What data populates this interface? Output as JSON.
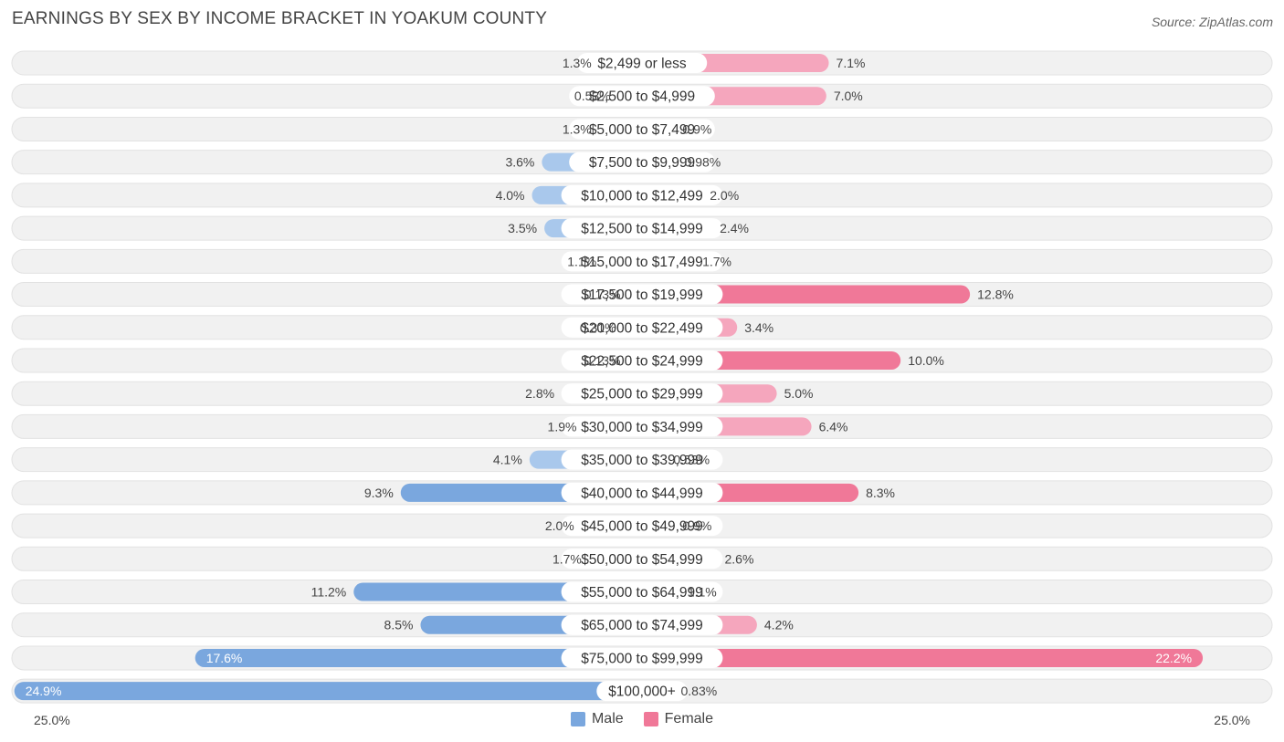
{
  "title": "EARNINGS BY SEX BY INCOME BRACKET IN YOAKUM COUNTY",
  "source": "Source: ZipAtlas.com",
  "colors": {
    "male": "#7aa7de",
    "male_light": "#a9c8ec",
    "female": "#f07898",
    "female_light": "#f5a6bd",
    "row_bg": "#f1f1f1"
  },
  "chart_data": {
    "type": "bar",
    "orientation": "horizontal-diverging",
    "categories": [
      "$2,499 or less",
      "$2,500 to $4,999",
      "$5,000 to $7,499",
      "$7,500 to $9,999",
      "$10,000 to $12,499",
      "$12,500 to $14,999",
      "$15,000 to $17,499",
      "$17,500 to $19,999",
      "$20,000 to $22,499",
      "$22,500 to $24,999",
      "$25,000 to $29,999",
      "$30,000 to $34,999",
      "$35,000 to $39,999",
      "$40,000 to $44,999",
      "$45,000 to $49,999",
      "$50,000 to $54,999",
      "$55,000 to $64,999",
      "$65,000 to $74,999",
      "$75,000 to $99,999",
      "$100,000+"
    ],
    "series": [
      {
        "name": "Male",
        "values": [
          1.3,
          0.53,
          1.3,
          3.6,
          4.0,
          3.5,
          1.1,
          0.13,
          0.31,
          0.13,
          2.8,
          1.9,
          4.1,
          9.3,
          2.0,
          1.7,
          11.2,
          8.5,
          17.6,
          24.9
        ],
        "labels": [
          "1.3%",
          "0.53%",
          "1.3%",
          "3.6%",
          "4.0%",
          "3.5%",
          "1.1%",
          "0.13%",
          "0.31%",
          "0.13%",
          "2.8%",
          "1.9%",
          "4.1%",
          "9.3%",
          "2.0%",
          "1.7%",
          "11.2%",
          "8.5%",
          "17.6%",
          "24.9%"
        ]
      },
      {
        "name": "Female",
        "values": [
          7.1,
          7.0,
          0.9,
          0.98,
          2.0,
          2.4,
          1.7,
          12.8,
          3.4,
          10.0,
          5.0,
          6.4,
          0.53,
          8.3,
          0.9,
          2.6,
          1.1,
          4.2,
          22.2,
          0.83
        ],
        "labels": [
          "7.1%",
          "7.0%",
          "0.9%",
          "0.98%",
          "2.0%",
          "2.4%",
          "1.7%",
          "12.8%",
          "3.4%",
          "10.0%",
          "5.0%",
          "6.4%",
          "0.53%",
          "8.3%",
          "0.9%",
          "2.6%",
          "1.1%",
          "4.2%",
          "22.2%",
          "0.83%"
        ]
      }
    ],
    "xlim": [
      -25.0,
      25.0
    ],
    "axis_left_label": "25.0%",
    "axis_right_label": "25.0%",
    "legend_position": "bottom-center"
  }
}
